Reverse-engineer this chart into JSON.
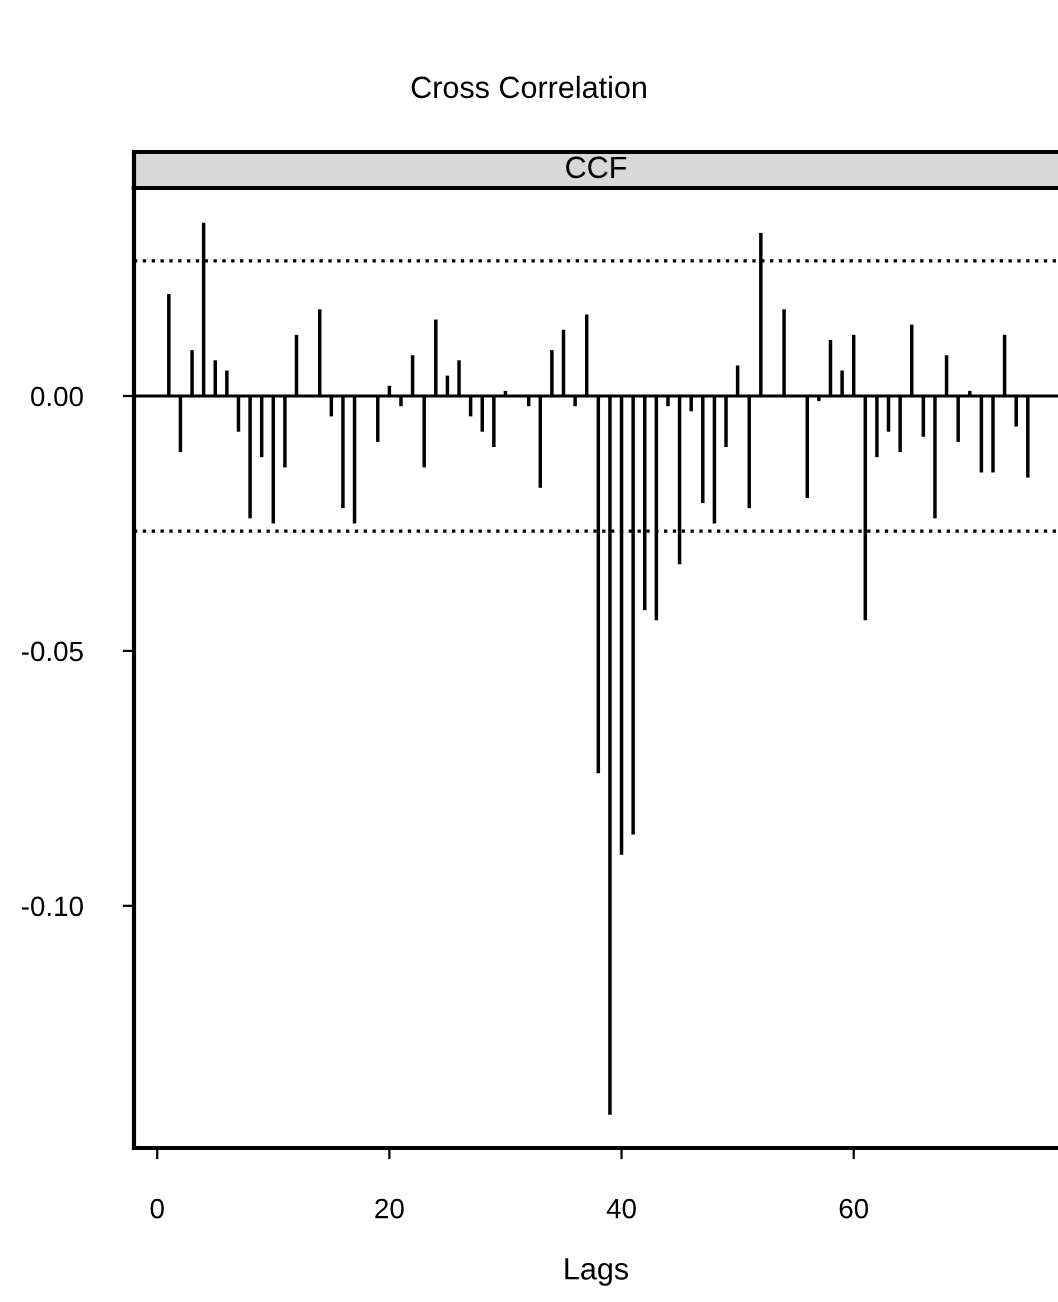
{
  "chart_data": {
    "type": "bar",
    "title": "Cross Correlation",
    "subtitle": "CCF",
    "xlabel": "Lags",
    "x": [
      1,
      2,
      3,
      4,
      5,
      6,
      7,
      8,
      9,
      10,
      11,
      12,
      13,
      14,
      15,
      16,
      17,
      18,
      19,
      20,
      21,
      22,
      23,
      24,
      25,
      26,
      27,
      28,
      29,
      30,
      31,
      32,
      33,
      34,
      35,
      36,
      37,
      38,
      39,
      40,
      41,
      42,
      43,
      44,
      45,
      46,
      47,
      48,
      49,
      50,
      51,
      52,
      53,
      54,
      55,
      56,
      57,
      58,
      59,
      60,
      61,
      62,
      63,
      64,
      65,
      66,
      67,
      68,
      69,
      70,
      71,
      72,
      73,
      74,
      75
    ],
    "values": [
      0.02,
      -0.011,
      0.009,
      0.034,
      0.007,
      0.005,
      -0.007,
      -0.024,
      -0.012,
      -0.025,
      -0.014,
      0.012,
      0.0,
      0.017,
      -0.004,
      -0.022,
      -0.025,
      0.0,
      -0.009,
      0.002,
      -0.002,
      0.008,
      -0.014,
      0.015,
      0.004,
      0.007,
      -0.004,
      -0.007,
      -0.01,
      0.001,
      0.0,
      -0.002,
      -0.018,
      0.009,
      0.013,
      -0.002,
      0.016,
      -0.074,
      -0.141,
      -0.09,
      -0.086,
      -0.042,
      -0.044,
      -0.002,
      -0.033,
      -0.003,
      -0.021,
      -0.025,
      -0.01,
      0.006,
      -0.022,
      0.032,
      0.0,
      0.017,
      0.0,
      -0.02,
      -0.001,
      0.011,
      0.005,
      0.012,
      -0.044,
      -0.012,
      -0.007,
      -0.011,
      0.014,
      -0.008,
      -0.024,
      0.008,
      -0.009,
      0.001,
      -0.015,
      -0.015,
      0.012,
      -0.006,
      -0.016
    ],
    "color": "#000000",
    "ref_lines": [
      {
        "axis": "y",
        "value": 0.0265,
        "line_style": "dotted",
        "color": "#000000"
      },
      {
        "axis": "y",
        "value": -0.0265,
        "line_style": "dotted",
        "color": "#000000"
      },
      {
        "axis": "y",
        "value": 0,
        "line_style": "solid",
        "color": "#000000"
      }
    ],
    "xlim": [
      -2,
      77.6
    ],
    "xticks": [
      0,
      20,
      40,
      60
    ],
    "ylim": [
      -0.1475,
      0.0408
    ],
    "yticks": [
      {
        "value": -0.1,
        "label": "-0.10"
      },
      {
        "value": -0.05,
        "label": "-0.05"
      },
      {
        "value": 0,
        "label": "0.00"
      }
    ],
    "grid": false,
    "legend": false
  }
}
